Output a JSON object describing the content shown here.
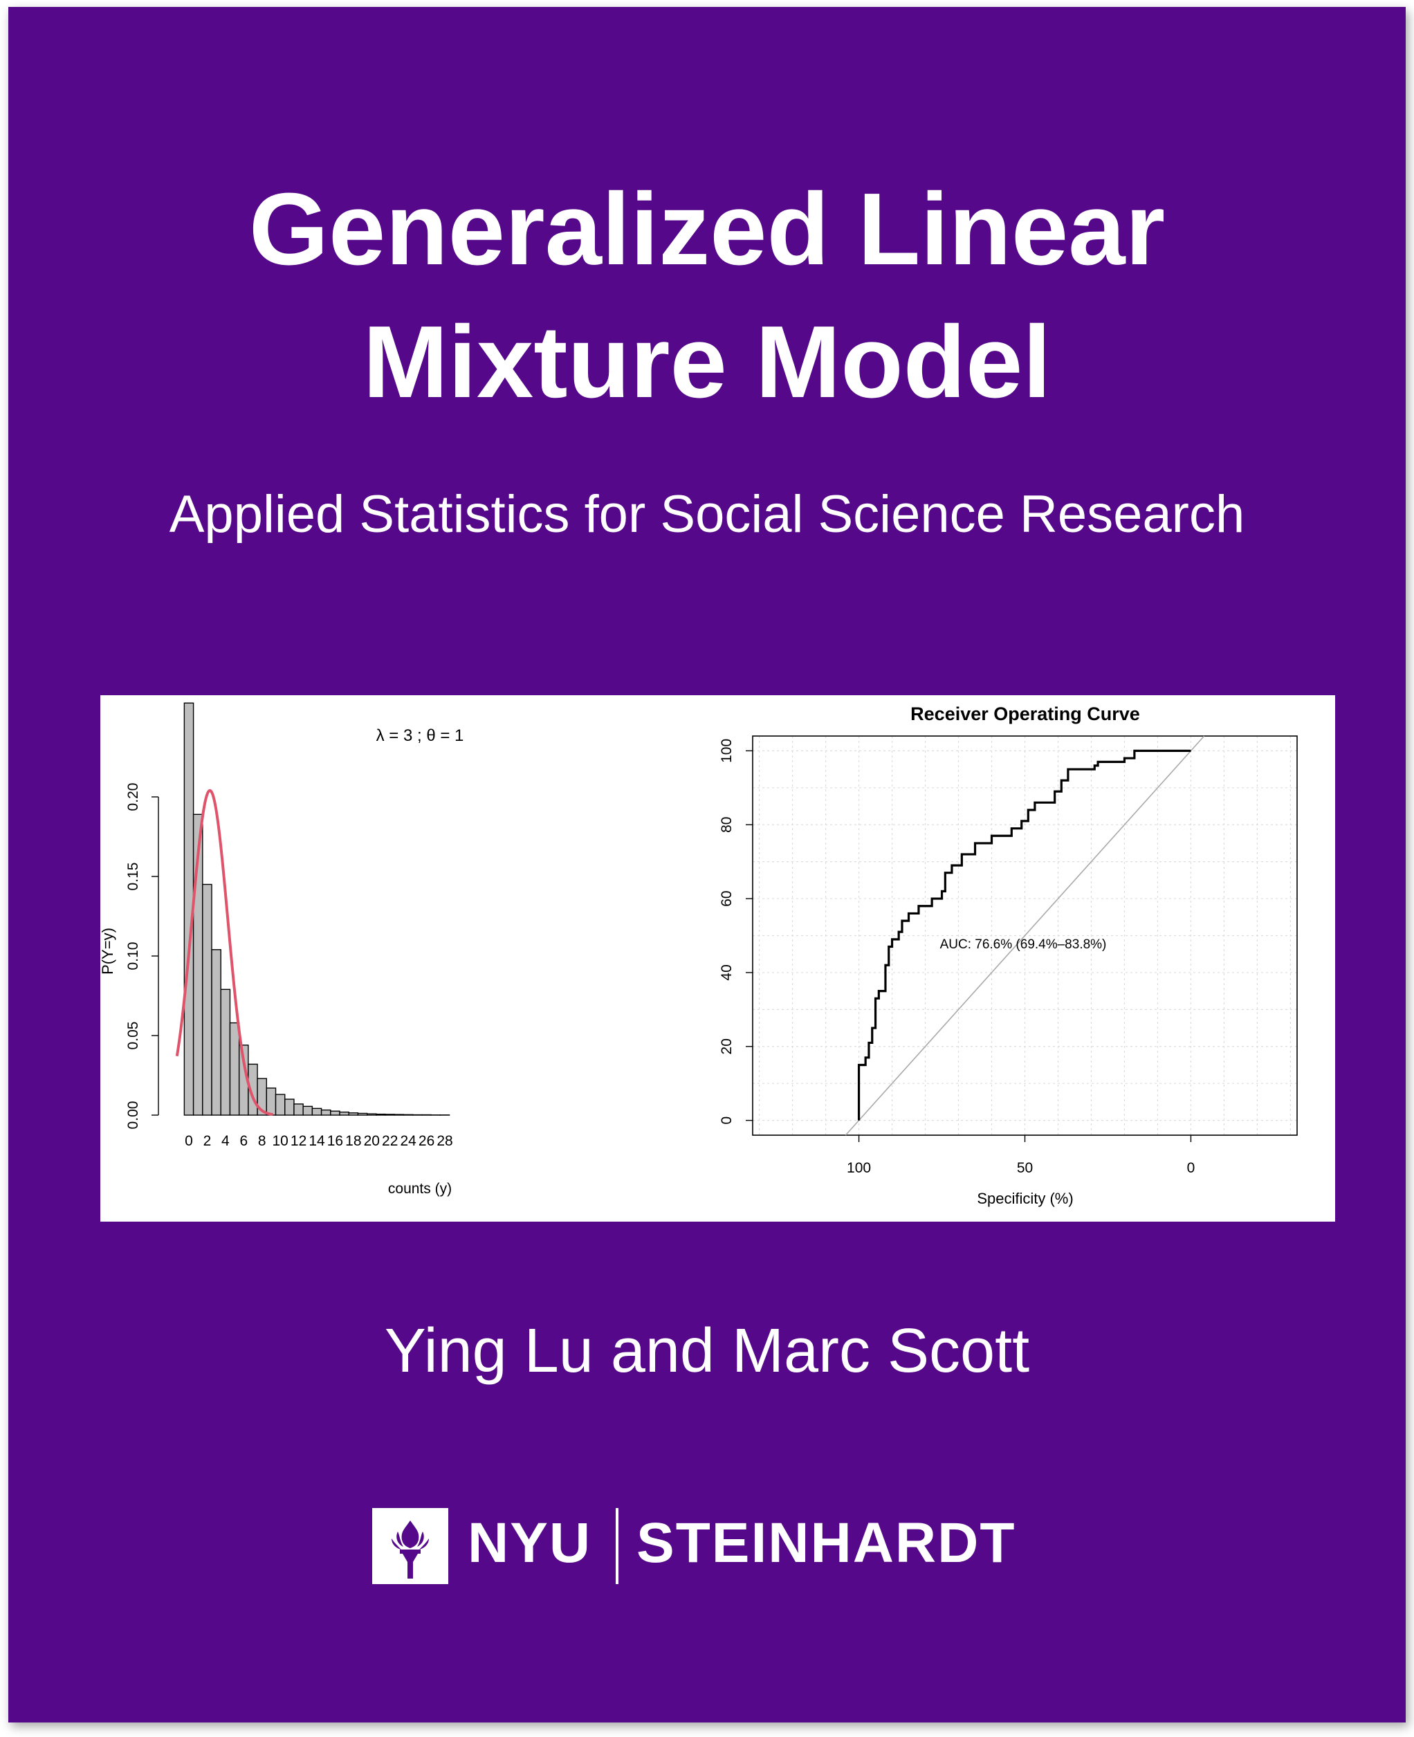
{
  "cover": {
    "background_color": "#56088a",
    "title_line1": "Generalized Linear",
    "title_line2": "Mixture Model",
    "subtitle": "Applied Statistics for Social Science Research",
    "authors": "Ying Lu and Marc Scott",
    "logo": {
      "icon": "torch-icon",
      "brand": "NYU",
      "school": "STEINHARDT"
    }
  },
  "chart_data": [
    {
      "type": "bar",
      "title": "λ = 3 ; θ = 1",
      "xlabel": "counts (y)",
      "ylabel": "P(Y=y)",
      "x_ticks": [
        0,
        2,
        4,
        6,
        8,
        10,
        12,
        14,
        16,
        18,
        20,
        22,
        24,
        26,
        28
      ],
      "y_ticks": [
        "0.00",
        "0.05",
        "0.10",
        "0.15",
        "0.20"
      ],
      "ylim": [
        0,
        0.25
      ],
      "bar_color": "#bebebe",
      "categories": [
        0,
        1,
        2,
        3,
        4,
        5,
        6,
        7,
        8,
        9,
        10,
        11,
        12,
        13,
        14,
        15,
        16,
        17,
        18,
        19,
        20,
        21,
        22,
        23,
        24,
        25,
        26,
        27,
        28
      ],
      "values": [
        0.259,
        0.189,
        0.145,
        0.104,
        0.079,
        0.058,
        0.044,
        0.032,
        0.023,
        0.017,
        0.013,
        0.01,
        0.007,
        0.0055,
        0.0042,
        0.0032,
        0.0025,
        0.0019,
        0.0014,
        0.0011,
        0.0008,
        0.0006,
        0.0005,
        0.0004,
        0.0003,
        0.0002,
        0.0002,
        0.0001,
        0.0001
      ],
      "series": [
        {
          "color": "#df536b",
          "curve": "normal",
          "mean": 2.3,
          "sd": 1.95,
          "peak": 0.204
        }
      ]
    },
    {
      "type": "line",
      "title": "Receiver Operating Curve",
      "xlabel": "Specificity (%)",
      "ylabel": "",
      "x_ticks": [
        100,
        50,
        0
      ],
      "y_ticks": [
        0,
        20,
        40,
        60,
        80,
        100
      ],
      "xlim": [
        132,
        -32
      ],
      "ylim": [
        -4,
        104
      ],
      "x_reversed": true,
      "grid": true,
      "annotation": "AUC: 76.6% (69.4%–83.8%)",
      "series": [
        {
          "color": "#000000",
          "x": [
            100,
            100,
            98,
            98,
            97,
            97,
            96,
            96,
            95,
            95,
            94,
            94,
            92,
            92,
            91,
            91,
            90,
            90,
            88,
            88,
            87,
            87,
            85,
            85,
            82,
            82,
            78,
            78,
            75,
            75,
            74,
            74,
            72,
            72,
            69,
            69,
            65,
            65,
            60,
            60,
            54,
            54,
            51,
            51,
            49,
            49,
            47,
            47,
            41,
            41,
            39,
            39,
            37,
            37,
            29,
            29,
            28,
            28,
            20,
            20,
            17,
            17,
            0
          ],
          "y": [
            0,
            15,
            15,
            17,
            17,
            21,
            21,
            25,
            25,
            33,
            33,
            35,
            35,
            42,
            42,
            47,
            47,
            49,
            49,
            51,
            51,
            54,
            54,
            56,
            56,
            58,
            58,
            60,
            60,
            62,
            62,
            67,
            67,
            69,
            69,
            72,
            72,
            75,
            75,
            77,
            77,
            79,
            79,
            81,
            81,
            84,
            84,
            86,
            86,
            89,
            89,
            92,
            92,
            95,
            95,
            96,
            96,
            97,
            97,
            98,
            98,
            100,
            100
          ]
        },
        {
          "color": "#a9a9a9",
          "x": [
            104,
            -4
          ],
          "y": [
            -4,
            104
          ]
        }
      ]
    }
  ]
}
